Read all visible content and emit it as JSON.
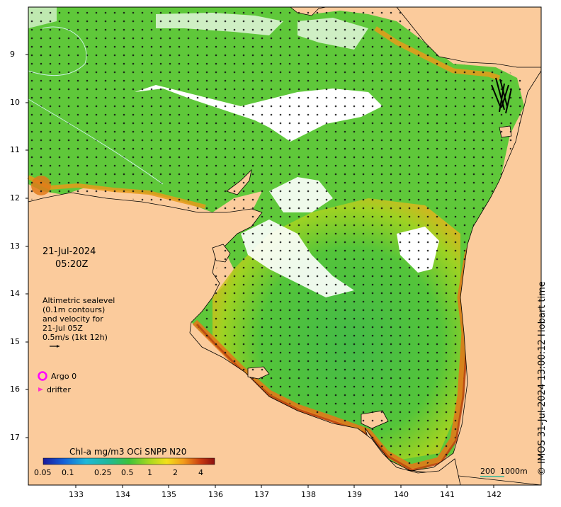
{
  "map": {
    "date": "21-Jul-2024",
    "time": "05:20Z",
    "altimetry_lines": [
      "Altimetric sealevel",
      "(0.1m contours)",
      "and velocity for",
      "21-Jul 05Z",
      "0.5m/s (1kt 12h)"
    ],
    "legend": {
      "argo_label": "Argo 0",
      "drifter_label": "drifter",
      "argo_color": "#ff00ff",
      "drifter_color": "#ff33cc"
    },
    "colorbar": {
      "title": "Chl-a mg/m3 OCi SNPP N20",
      "ticks": [
        "0.05",
        "0.1",
        "0.25",
        "0.5",
        "1",
        "2",
        "4"
      ]
    },
    "depth_scale": {
      "label_200": "200",
      "label_1000": "1000m"
    },
    "y_ticks": [
      "9",
      "10",
      "11",
      "12",
      "13",
      "14",
      "15",
      "16",
      "17"
    ],
    "x_ticks": [
      "133",
      "134",
      "135",
      "136",
      "137",
      "138",
      "139",
      "140",
      "141",
      "142"
    ],
    "credit": "© IMOS 31-Jul-2024 13:00:12 Hobart time",
    "colors": {
      "land": "#fbcb9c",
      "ocean_green": "#4cc23a",
      "coast_orange": "#e07a1a",
      "no_data": "#ffffff"
    }
  }
}
